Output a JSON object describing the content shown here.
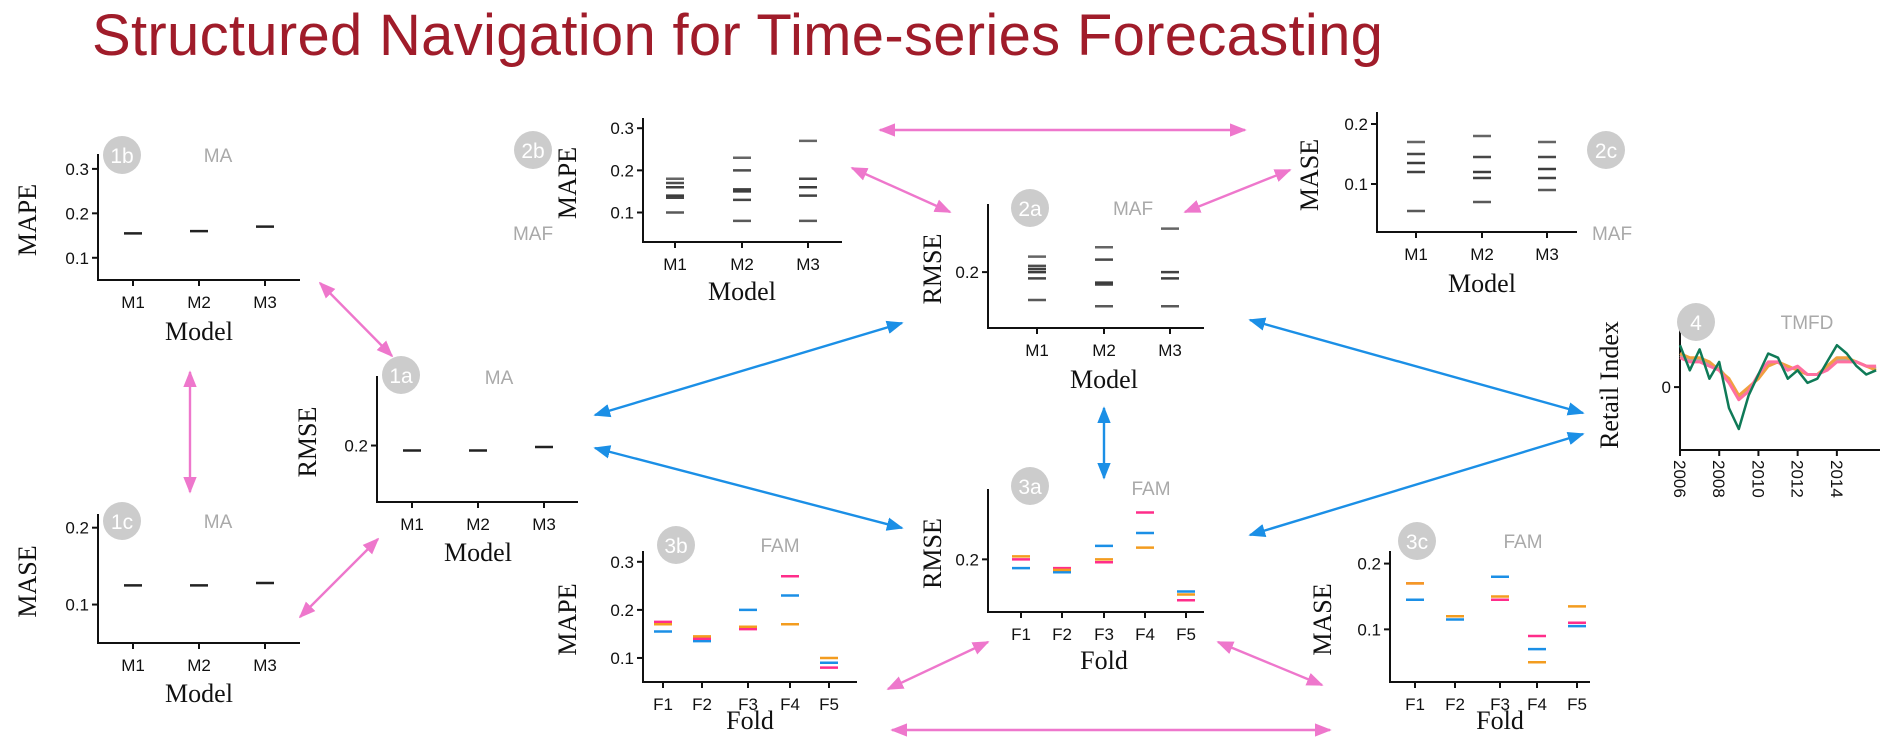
{
  "title": "Structured Navigation for Time-series Forecasting",
  "colors": {
    "title": "#a01c2a",
    "pink_link": "#ee77cc",
    "blue_link": "#1b8fe6",
    "badge": "#cccccc",
    "method_label": "#a9a9a9",
    "fold_series": [
      "#1b8fe6",
      "#ff2d8a",
      "#f39c1f"
    ],
    "tmfd_series": [
      "#0f7a57",
      "#ff6fa0",
      "#f0a040",
      "#aaaaaa"
    ]
  },
  "chart_data": [
    {
      "id": "1b",
      "type": "scatter",
      "method_label": "MA",
      "xlabel": "Model",
      "ylabel": "MAPE",
      "categories": [
        "M1",
        "M2",
        "M3"
      ],
      "ylim": [
        0.05,
        0.32
      ],
      "yticks": [
        0.1,
        0.2,
        0.3
      ],
      "ytick_labels": [
        "0.1",
        "0.2",
        "0.3"
      ],
      "series": [
        {
          "values": [
            0.155,
            0.16,
            0.17
          ]
        }
      ]
    },
    {
      "id": "1c",
      "type": "scatter",
      "method_label": "MA",
      "xlabel": "Model",
      "ylabel": "MASE",
      "categories": [
        "M1",
        "M2",
        "M3"
      ],
      "ylim": [
        0.05,
        0.21
      ],
      "yticks": [
        0.1,
        0.2
      ],
      "ytick_labels": [
        "0.1",
        "0.2"
      ],
      "series": [
        {
          "values": [
            0.125,
            0.125,
            0.128
          ]
        }
      ]
    },
    {
      "id": "1a",
      "type": "scatter",
      "method_label": "MA",
      "xlabel": "Model",
      "ylabel": "RMSE",
      "categories": [
        "M1",
        "M2",
        "M3"
      ],
      "ylim": [
        0.12,
        0.29
      ],
      "yticks": [
        0.2
      ],
      "ytick_labels": [
        "0.2"
      ],
      "series": [
        {
          "values": [
            0.193,
            0.193,
            0.198
          ]
        }
      ]
    },
    {
      "id": "2b",
      "type": "scatter",
      "method_label": "MAF",
      "xlabel": "Model",
      "ylabel": "MAPE",
      "categories": [
        "M1",
        "M2",
        "M3"
      ],
      "ylim": [
        0.03,
        0.31
      ],
      "yticks": [
        0.1,
        0.2,
        0.3
      ],
      "ytick_labels": [
        "0.1",
        "0.2",
        "0.3"
      ],
      "series": [
        {
          "distribution": [
            [
              0.1,
              0.135,
              0.14,
              0.16,
              0.17,
              0.18
            ],
            [
              0.08,
              0.13,
              0.15,
              0.155,
              0.2,
              0.23
            ],
            [
              0.08,
              0.14,
              0.16,
              0.18,
              0.27
            ]
          ]
        }
      ]
    },
    {
      "id": "2a",
      "type": "scatter",
      "method_label": "MAF",
      "xlabel": "Model",
      "ylabel": "RMSE",
      "categories": [
        "M1",
        "M2",
        "M3"
      ],
      "ylim": [
        0.11,
        0.3
      ],
      "yticks": [
        0.2
      ],
      "ytick_labels": [
        "0.2"
      ],
      "series": [
        {
          "distribution": [
            [
              0.155,
              0.19,
              0.2,
              0.205,
              0.21,
              0.225
            ],
            [
              0.145,
              0.18,
              0.183,
              0.22,
              0.24
            ],
            [
              0.145,
              0.19,
              0.2,
              0.27
            ]
          ]
        }
      ]
    },
    {
      "id": "2c",
      "type": "scatter",
      "method_label": "MAF",
      "xlabel": "Model",
      "ylabel": "MASE",
      "categories": [
        "M1",
        "M2",
        "M3"
      ],
      "ylim": [
        0.02,
        0.21
      ],
      "yticks": [
        0.1,
        0.2
      ],
      "ytick_labels": [
        "0.1",
        "0.2"
      ],
      "series": [
        {
          "distribution": [
            [
              0.055,
              0.12,
              0.135,
              0.15,
              0.17
            ],
            [
              0.07,
              0.11,
              0.12,
              0.145,
              0.18
            ],
            [
              0.09,
              0.11,
              0.125,
              0.145,
              0.17
            ]
          ]
        }
      ]
    },
    {
      "id": "3b",
      "type": "scatter",
      "method_label": "FAM",
      "xlabel": "Fold",
      "ylabel": "MAPE",
      "categories": [
        "F1",
        "F2",
        "F3",
        "F4",
        "F5"
      ],
      "ylim": [
        0.05,
        0.31
      ],
      "yticks": [
        0.1,
        0.2,
        0.3
      ],
      "ytick_labels": [
        "0.1",
        "0.2",
        "0.3"
      ],
      "series": [
        {
          "values": [
            0.155,
            0.135,
            0.2,
            0.23,
            0.09
          ]
        },
        {
          "values": [
            0.175,
            0.14,
            0.16,
            0.27,
            0.08
          ]
        },
        {
          "values": [
            0.17,
            0.145,
            0.165,
            0.17,
            0.1
          ]
        }
      ]
    },
    {
      "id": "3a",
      "type": "scatter",
      "method_label": "FAM",
      "xlabel": "Fold",
      "ylabel": "RMSE",
      "categories": [
        "F1",
        "F2",
        "F3",
        "F4",
        "F5"
      ],
      "ylim": [
        0.11,
        0.31
      ],
      "yticks": [
        0.2
      ],
      "ytick_labels": [
        "0.2"
      ],
      "series": [
        {
          "values": [
            0.185,
            0.178,
            0.223,
            0.245,
            0.145
          ]
        },
        {
          "values": [
            0.2,
            0.185,
            0.195,
            0.28,
            0.13
          ]
        },
        {
          "values": [
            0.205,
            0.182,
            0.2,
            0.22,
            0.14
          ]
        }
      ]
    },
    {
      "id": "3c",
      "type": "scatter",
      "method_label": "FAM",
      "xlabel": "Fold",
      "ylabel": "MASE",
      "categories": [
        "F1",
        "F2",
        "F3",
        "F4",
        "F5"
      ],
      "ylim": [
        0.02,
        0.21
      ],
      "yticks": [
        0.1,
        0.2
      ],
      "ytick_labels": [
        "0.1",
        "0.2"
      ],
      "series": [
        {
          "values": [
            0.145,
            0.115,
            0.18,
            0.07,
            0.105
          ]
        },
        {
          "values": [
            0.17,
            0.12,
            0.145,
            0.09,
            0.11
          ]
        },
        {
          "values": [
            0.17,
            0.12,
            0.15,
            0.05,
            0.135
          ]
        }
      ]
    },
    {
      "id": "4",
      "type": "line",
      "method_label": "TMFD",
      "xlabel": "",
      "ylabel": "Retail Index",
      "x": [
        2006,
        2006.5,
        2007,
        2007.5,
        2008,
        2008.5,
        2009,
        2009.5,
        2010,
        2010.5,
        2011,
        2011.5,
        2012,
        2012.5,
        2013,
        2013.5,
        2014,
        2014.5,
        2015,
        2015.5,
        2016
      ],
      "xlim": [
        2006,
        2016.2
      ],
      "xticks": [
        2006,
        2008,
        2010,
        2012,
        2014
      ],
      "xtick_labels": [
        "2006",
        "2008",
        "2010",
        "2012",
        "2014"
      ],
      "ylim": [
        -1.5,
        1.6
      ],
      "yticks": [
        0
      ],
      "ytick_labels": [
        "0"
      ],
      "series": [
        {
          "values": [
            1.0,
            0.4,
            0.9,
            0.2,
            0.6,
            -0.5,
            -1.0,
            -0.2,
            0.3,
            0.8,
            0.7,
            0.2,
            0.4,
            0.1,
            0.2,
            0.6,
            1.0,
            0.8,
            0.5,
            0.3,
            0.4
          ]
        },
        {
          "values": [
            0.7,
            0.6,
            0.6,
            0.5,
            0.4,
            0.1,
            -0.3,
            -0.1,
            0.3,
            0.6,
            0.6,
            0.4,
            0.5,
            0.3,
            0.3,
            0.4,
            0.6,
            0.6,
            0.6,
            0.5,
            0.5
          ]
        },
        {
          "values": [
            0.8,
            0.7,
            0.7,
            0.6,
            0.4,
            0.2,
            -0.2,
            0.0,
            0.2,
            0.5,
            0.6,
            0.5,
            0.4,
            0.3,
            0.3,
            0.5,
            0.7,
            0.7,
            0.6,
            0.5,
            0.4
          ]
        },
        {
          "values": [
            0.75,
            0.65,
            0.65,
            0.55,
            0.45,
            0.15,
            -0.25,
            -0.05,
            0.25,
            0.55,
            0.6,
            0.45,
            0.45,
            0.3,
            0.3,
            0.45,
            0.65,
            0.65,
            0.6,
            0.5,
            0.45
          ]
        }
      ]
    }
  ],
  "links": [
    {
      "from": "1b",
      "to": "1a",
      "color": "pink"
    },
    {
      "from": "1b",
      "to": "1c",
      "color": "pink"
    },
    {
      "from": "1c",
      "to": "1a",
      "color": "pink"
    },
    {
      "from": "2b",
      "to": "2a",
      "color": "pink"
    },
    {
      "from": "2b",
      "to": "2c",
      "color": "pink"
    },
    {
      "from": "2c",
      "to": "2a",
      "color": "pink"
    },
    {
      "from": "3b",
      "to": "3a",
      "color": "pink"
    },
    {
      "from": "3a",
      "to": "3c",
      "color": "pink"
    },
    {
      "from": "3b",
      "to": "3c",
      "color": "pink"
    },
    {
      "from": "1a",
      "to": "2a",
      "color": "blue"
    },
    {
      "from": "1a",
      "to": "3a",
      "color": "blue"
    },
    {
      "from": "2a",
      "to": "3a",
      "color": "blue"
    },
    {
      "from": "2a",
      "to": "4",
      "color": "blue"
    },
    {
      "from": "3a",
      "to": "4",
      "color": "blue"
    }
  ]
}
